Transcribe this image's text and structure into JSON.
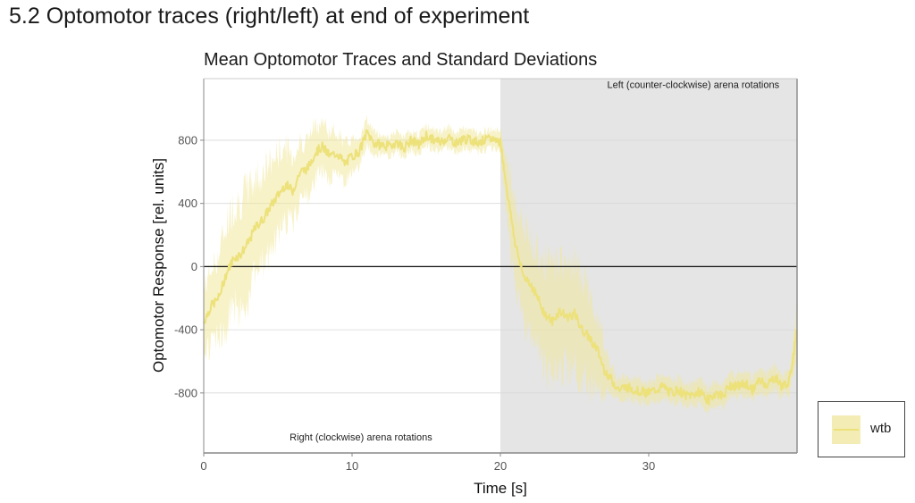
{
  "page": {
    "section_title": "5.2 Optomotor traces (right/left) at end of experiment"
  },
  "chart_data": {
    "type": "area",
    "title": "Mean Optomotor Traces and Standard Deviations",
    "xlabel": "Time [s]",
    "ylabel": "Optomotor Response [rel. units]",
    "xlim": [
      0,
      40
    ],
    "ylim": [
      -1180,
      1190
    ],
    "xticks": [
      0,
      10,
      20,
      30
    ],
    "yticks": [
      -800,
      -400,
      0,
      400,
      800
    ],
    "grid": true,
    "hline": 0,
    "shaded_region": {
      "x_start": 20,
      "x_end": 40,
      "color": "#e5e5e5"
    },
    "annotations": [
      {
        "text": "Right (clockwise) arena rotations",
        "x": 10.6,
        "y": -1100
      },
      {
        "text": "Left (counter-clockwise) arena rotations",
        "x": 33,
        "y": 1130
      }
    ],
    "legend": {
      "position": "right-bottom",
      "entries": [
        "wtb"
      ]
    },
    "colors": {
      "line": "#ede17a",
      "ribbon": "#f1e89a",
      "ribbon_opacity": 0.55
    },
    "series": [
      {
        "name": "wtb",
        "x": [
          0,
          0.5,
          1,
          1.5,
          2,
          2.5,
          3,
          3.5,
          4,
          4.5,
          5,
          5.5,
          6,
          6.5,
          7,
          7.5,
          8,
          8.5,
          9,
          9.5,
          10,
          10.5,
          11,
          11.5,
          12,
          12.5,
          13,
          13.5,
          14,
          14.5,
          15,
          15.5,
          16,
          16.5,
          17,
          17.5,
          18,
          18.5,
          19,
          19.5,
          20,
          20.5,
          21,
          21.5,
          22,
          22.5,
          23,
          23.5,
          24,
          24.5,
          25,
          25.5,
          26,
          26.5,
          27,
          27.5,
          28,
          28.5,
          29,
          29.5,
          30,
          30.5,
          31,
          31.5,
          32,
          32.5,
          33,
          33.5,
          34,
          34.5,
          35,
          35.5,
          36,
          36.5,
          37,
          37.5,
          38,
          38.5,
          39,
          39.5,
          40
        ],
        "mean": [
          -350,
          -250,
          -200,
          -50,
          50,
          80,
          150,
          250,
          300,
          380,
          450,
          520,
          480,
          600,
          620,
          720,
          760,
          700,
          720,
          650,
          700,
          730,
          850,
          780,
          770,
          760,
          790,
          750,
          800,
          770,
          830,
          800,
          790,
          820,
          780,
          810,
          800,
          790,
          800,
          810,
          790,
          450,
          150,
          -50,
          -100,
          -200,
          -300,
          -350,
          -280,
          -320,
          -300,
          -400,
          -450,
          -520,
          -650,
          -720,
          -780,
          -760,
          -780,
          -790,
          -800,
          -780,
          -760,
          -800,
          -780,
          -820,
          -810,
          -790,
          -850,
          -800,
          -820,
          -750,
          -760,
          -740,
          -780,
          -720,
          -750,
          -700,
          -760,
          -720,
          -400
        ],
        "sd": [
          200,
          220,
          250,
          300,
          320,
          330,
          320,
          300,
          280,
          260,
          250,
          230,
          200,
          180,
          170,
          160,
          150,
          140,
          130,
          120,
          100,
          90,
          80,
          70,
          60,
          60,
          60,
          60,
          60,
          60,
          60,
          60,
          60,
          60,
          60,
          60,
          60,
          60,
          60,
          60,
          60,
          200,
          250,
          280,
          280,
          300,
          320,
          320,
          320,
          320,
          320,
          300,
          280,
          220,
          150,
          80,
          70,
          70,
          70,
          70,
          70,
          70,
          70,
          70,
          70,
          70,
          70,
          70,
          70,
          70,
          70,
          70,
          70,
          70,
          70,
          70,
          70,
          70,
          70,
          70,
          150
        ]
      }
    ]
  }
}
